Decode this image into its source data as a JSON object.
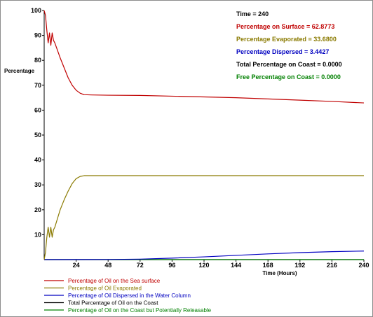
{
  "chart_data": {
    "type": "line",
    "xlabel": "Time (Hours)",
    "ylabel": "Percentage",
    "xlim": [
      0,
      240
    ],
    "ylim": [
      0,
      100
    ],
    "x_ticks": [
      24,
      48,
      72,
      96,
      120,
      144,
      168,
      192,
      216,
      240
    ],
    "y_ticks": [
      10,
      20,
      30,
      40,
      50,
      60,
      70,
      80,
      90,
      100
    ],
    "grid": false,
    "readouts": [
      {
        "text": "Time = 240",
        "color": "#000000"
      },
      {
        "text": "Percentage on Surface = 62.8773",
        "color": "#c00000"
      },
      {
        "text": "Percentage Evaporated = 33.6800",
        "color": "#8a7a00"
      },
      {
        "text": "Percentage Dispersed = 3.4427",
        "color": "#0000c0"
      },
      {
        "text": "Total Percentage on Coast = 0.0000",
        "color": "#000000"
      },
      {
        "text": "Free Percentage on Coast = 0.0000",
        "color": "#008000"
      }
    ],
    "legend_position": "bottom-left",
    "series": [
      {
        "name": "Percentage of Oil on the Sea surface",
        "color": "#c00000",
        "points": [
          [
            0,
            100
          ],
          [
            1,
            98
          ],
          [
            2,
            92
          ],
          [
            3,
            87
          ],
          [
            4,
            91
          ],
          [
            5,
            86
          ],
          [
            6,
            91
          ],
          [
            7,
            88
          ],
          [
            8,
            87
          ],
          [
            10,
            84
          ],
          [
            12,
            81
          ],
          [
            15,
            77
          ],
          [
            18,
            73
          ],
          [
            21,
            70
          ],
          [
            24,
            68
          ],
          [
            27,
            66.8
          ],
          [
            30,
            66.2
          ],
          [
            36,
            66.1
          ],
          [
            48,
            66
          ],
          [
            72,
            65.9
          ],
          [
            96,
            65.6
          ],
          [
            120,
            65.3
          ],
          [
            144,
            65
          ],
          [
            168,
            64.5
          ],
          [
            192,
            64
          ],
          [
            216,
            63.5
          ],
          [
            240,
            62.9
          ]
        ]
      },
      {
        "name": "Percentage of Oil Evaporated",
        "color": "#8a7a00",
        "points": [
          [
            0,
            0
          ],
          [
            1,
            3
          ],
          [
            2,
            9
          ],
          [
            3,
            13
          ],
          [
            4,
            9
          ],
          [
            5,
            13
          ],
          [
            6,
            9
          ],
          [
            7,
            12
          ],
          [
            8,
            13
          ],
          [
            10,
            16.5
          ],
          [
            12,
            20
          ],
          [
            15,
            24
          ],
          [
            18,
            27.5
          ],
          [
            21,
            30.5
          ],
          [
            24,
            32.5
          ],
          [
            27,
            33.4
          ],
          [
            30,
            33.7
          ],
          [
            48,
            33.7
          ],
          [
            120,
            33.7
          ],
          [
            240,
            33.7
          ]
        ]
      },
      {
        "name": "Percentage of Oil Dispersed in the Water Column",
        "color": "#0000c0",
        "points": [
          [
            0,
            0
          ],
          [
            48,
            0.05
          ],
          [
            72,
            0.2
          ],
          [
            96,
            0.6
          ],
          [
            120,
            1.1
          ],
          [
            144,
            1.7
          ],
          [
            168,
            2.3
          ],
          [
            192,
            2.8
          ],
          [
            216,
            3.2
          ],
          [
            240,
            3.44
          ]
        ]
      },
      {
        "name": "Total Percentage of Oil on the Coast",
        "color": "#000000",
        "points": [
          [
            0,
            0
          ],
          [
            240,
            0
          ]
        ]
      },
      {
        "name": "Percentage of Oil on the Coast but Potentially Releasable",
        "color": "#008000",
        "points": [
          [
            0,
            0
          ],
          [
            240,
            0
          ]
        ]
      }
    ]
  }
}
